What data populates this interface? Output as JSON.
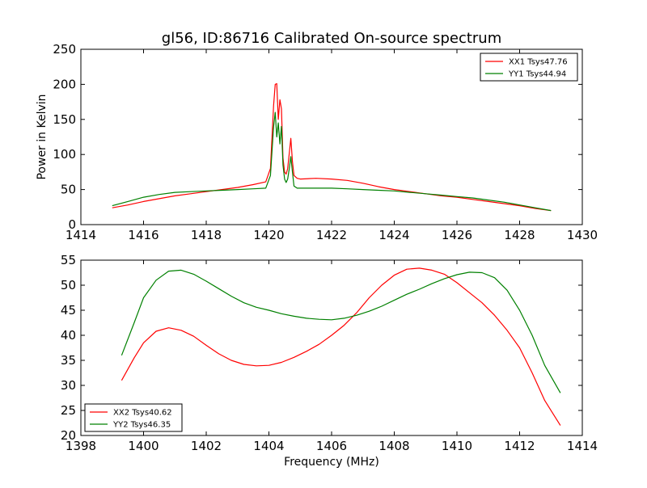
{
  "title": "gl56, ID:86716 Calibrated On-source spectrum",
  "chart_data": [
    {
      "type": "line",
      "xlabel": "",
      "ylabel": "Power in Kelvin",
      "xlim": [
        1414,
        1430
      ],
      "ylim": [
        0,
        250
      ],
      "xticks": [
        "1414",
        "1416",
        "1418",
        "1420",
        "1422",
        "1424",
        "1426",
        "1428",
        "1430"
      ],
      "yticks": [
        "0",
        "50",
        "100",
        "150",
        "200",
        "250"
      ],
      "legend": "top-right",
      "grid": false,
      "series": [
        {
          "name": "XX1 Tsys47.76",
          "color": "#ff0000",
          "x": [
            1415.0,
            1415.5,
            1416.0,
            1416.5,
            1417.0,
            1417.5,
            1418.0,
            1418.5,
            1419.0,
            1419.5,
            1419.9,
            1420.05,
            1420.15,
            1420.2,
            1420.25,
            1420.3,
            1420.35,
            1420.4,
            1420.45,
            1420.5,
            1420.55,
            1420.6,
            1420.65,
            1420.7,
            1420.75,
            1420.8,
            1420.9,
            1421.0,
            1421.5,
            1422.0,
            1422.5,
            1423.0,
            1423.5,
            1424.0,
            1424.5,
            1425.0,
            1425.5,
            1426.0,
            1426.5,
            1427.0,
            1427.5,
            1428.0,
            1428.5,
            1429.0
          ],
          "y": [
            24,
            28,
            33,
            37,
            41,
            44,
            47,
            50,
            53,
            57,
            61,
            80,
            170,
            200,
            201,
            150,
            178,
            165,
            95,
            75,
            72,
            80,
            102,
            123,
            90,
            70,
            66,
            65,
            66,
            65,
            63,
            59,
            54,
            50,
            47,
            44,
            41,
            39,
            36,
            33,
            30,
            27,
            23,
            20
          ]
        },
        {
          "name": "YY1 Tsys44.94",
          "color": "#008000",
          "x": [
            1415.0,
            1415.5,
            1416.0,
            1416.5,
            1417.0,
            1417.5,
            1418.0,
            1418.5,
            1419.0,
            1419.5,
            1419.9,
            1420.05,
            1420.15,
            1420.2,
            1420.25,
            1420.3,
            1420.35,
            1420.4,
            1420.45,
            1420.5,
            1420.55,
            1420.6,
            1420.65,
            1420.7,
            1420.75,
            1420.8,
            1420.9,
            1421.0,
            1421.5,
            1422.0,
            1422.5,
            1423.0,
            1423.5,
            1424.0,
            1424.5,
            1425.0,
            1425.5,
            1426.0,
            1426.5,
            1427.0,
            1427.5,
            1428.0,
            1428.5,
            1429.0
          ],
          "y": [
            27,
            33,
            39,
            43,
            46,
            47,
            48,
            49,
            50,
            51,
            52,
            70,
            140,
            160,
            125,
            145,
            115,
            140,
            85,
            65,
            60,
            65,
            80,
            97,
            75,
            55,
            52,
            52,
            52,
            52,
            51,
            50,
            49,
            48,
            46,
            44,
            42,
            40,
            38,
            35,
            32,
            28,
            24,
            20
          ]
        }
      ]
    },
    {
      "type": "line",
      "xlabel": "Frequency (MHz)",
      "ylabel": "",
      "xlim": [
        1398,
        1414
      ],
      "ylim": [
        20,
        55
      ],
      "xticks": [
        "1398",
        "1400",
        "1402",
        "1404",
        "1406",
        "1408",
        "1410",
        "1412",
        "1414"
      ],
      "yticks": [
        "20",
        "25",
        "30",
        "35",
        "40",
        "45",
        "50",
        "55"
      ],
      "legend": "bottom-left",
      "grid": false,
      "series": [
        {
          "name": "XX2 Tsys40.62",
          "color": "#ff0000",
          "x": [
            1399.3,
            1399.7,
            1400.0,
            1400.4,
            1400.8,
            1401.2,
            1401.6,
            1402.0,
            1402.4,
            1402.8,
            1403.2,
            1403.6,
            1404.0,
            1404.4,
            1404.8,
            1405.2,
            1405.6,
            1406.0,
            1406.4,
            1406.8,
            1407.2,
            1407.6,
            1408.0,
            1408.4,
            1408.8,
            1409.2,
            1409.6,
            1410.0,
            1410.4,
            1410.8,
            1411.2,
            1411.6,
            1412.0,
            1412.4,
            1412.8,
            1413.3
          ],
          "y": [
            31,
            35.5,
            38.5,
            40.8,
            41.5,
            41,
            39.8,
            38,
            36.3,
            35,
            34.2,
            33.9,
            34,
            34.6,
            35.6,
            36.8,
            38.2,
            40,
            42,
            44.5,
            47.5,
            50,
            52,
            53.2,
            53.4,
            53,
            52.2,
            50.5,
            48.5,
            46.5,
            44,
            41,
            37.5,
            32.5,
            27,
            22
          ]
        },
        {
          "name": "YY2 Tsys46.35",
          "color": "#008000",
          "x": [
            1399.3,
            1399.7,
            1400.0,
            1400.4,
            1400.8,
            1401.2,
            1401.6,
            1402.0,
            1402.4,
            1402.8,
            1403.2,
            1403.6,
            1404.0,
            1404.4,
            1404.8,
            1405.2,
            1405.6,
            1406.0,
            1406.4,
            1406.8,
            1407.2,
            1407.6,
            1408.0,
            1408.4,
            1408.8,
            1409.2,
            1409.6,
            1410.0,
            1410.4,
            1410.8,
            1411.2,
            1411.6,
            1412.0,
            1412.4,
            1412.8,
            1413.3
          ],
          "y": [
            36,
            42.5,
            47.5,
            51,
            52.8,
            53,
            52.2,
            50.8,
            49.3,
            47.8,
            46.5,
            45.6,
            45,
            44.3,
            43.8,
            43.4,
            43.2,
            43.1,
            43.4,
            44,
            44.8,
            45.8,
            47,
            48.2,
            49.2,
            50.3,
            51.3,
            52.1,
            52.6,
            52.5,
            51.5,
            49,
            45,
            40,
            34,
            28.5
          ]
        }
      ]
    }
  ]
}
